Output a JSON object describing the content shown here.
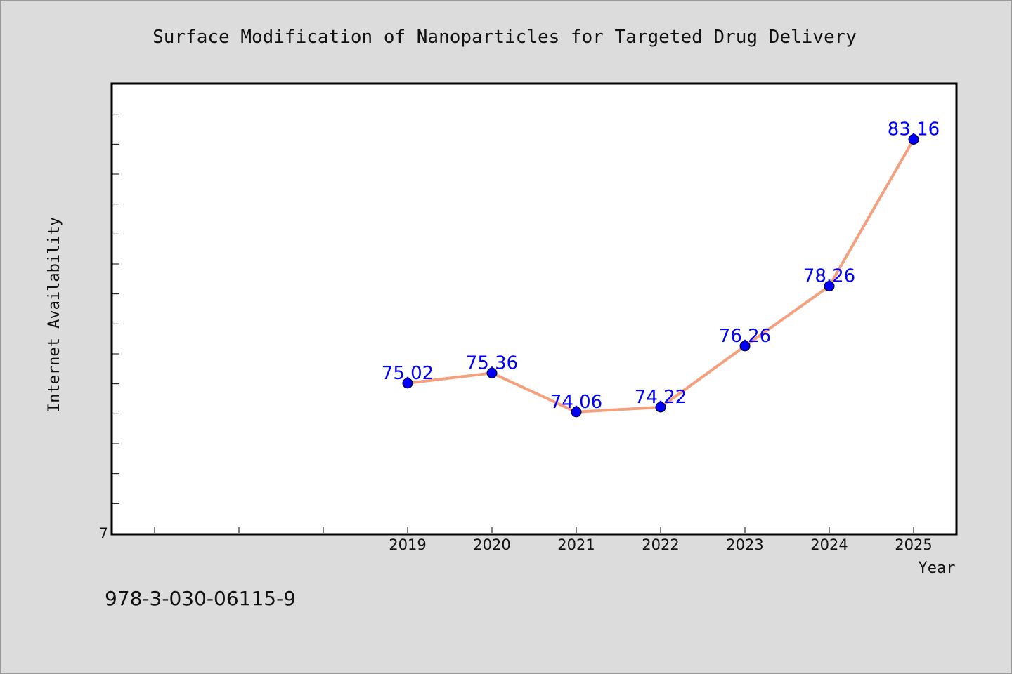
{
  "chart_data": {
    "type": "line",
    "title": "Surface Modification of Nanoparticles for Targeted Drug Delivery",
    "xlabel": "Year",
    "ylabel": "Internet Availability",
    "x": [
      "2019",
      "2020",
      "2021",
      "2022",
      "2023",
      "2024",
      "2025"
    ],
    "series": [
      {
        "values": [
          75.02,
          75.36,
          74.06,
          74.22,
          76.26,
          78.26,
          83.16
        ],
        "labels": [
          "75.02",
          "75.36",
          "74.06",
          "74.22",
          "76.26",
          "78.26",
          "83.16"
        ]
      }
    ],
    "ylim": [
      70,
      85
    ],
    "y_tick_labels": [
      "7"
    ],
    "grid": false,
    "line_color": "#f4a07e",
    "marker_color": "#0000ff",
    "label_color": "#0000ff",
    "plot_background": "#ffffff",
    "page_background": "#dcdcdc"
  },
  "footer": {
    "isbn": "978-3-030-06115-9"
  }
}
